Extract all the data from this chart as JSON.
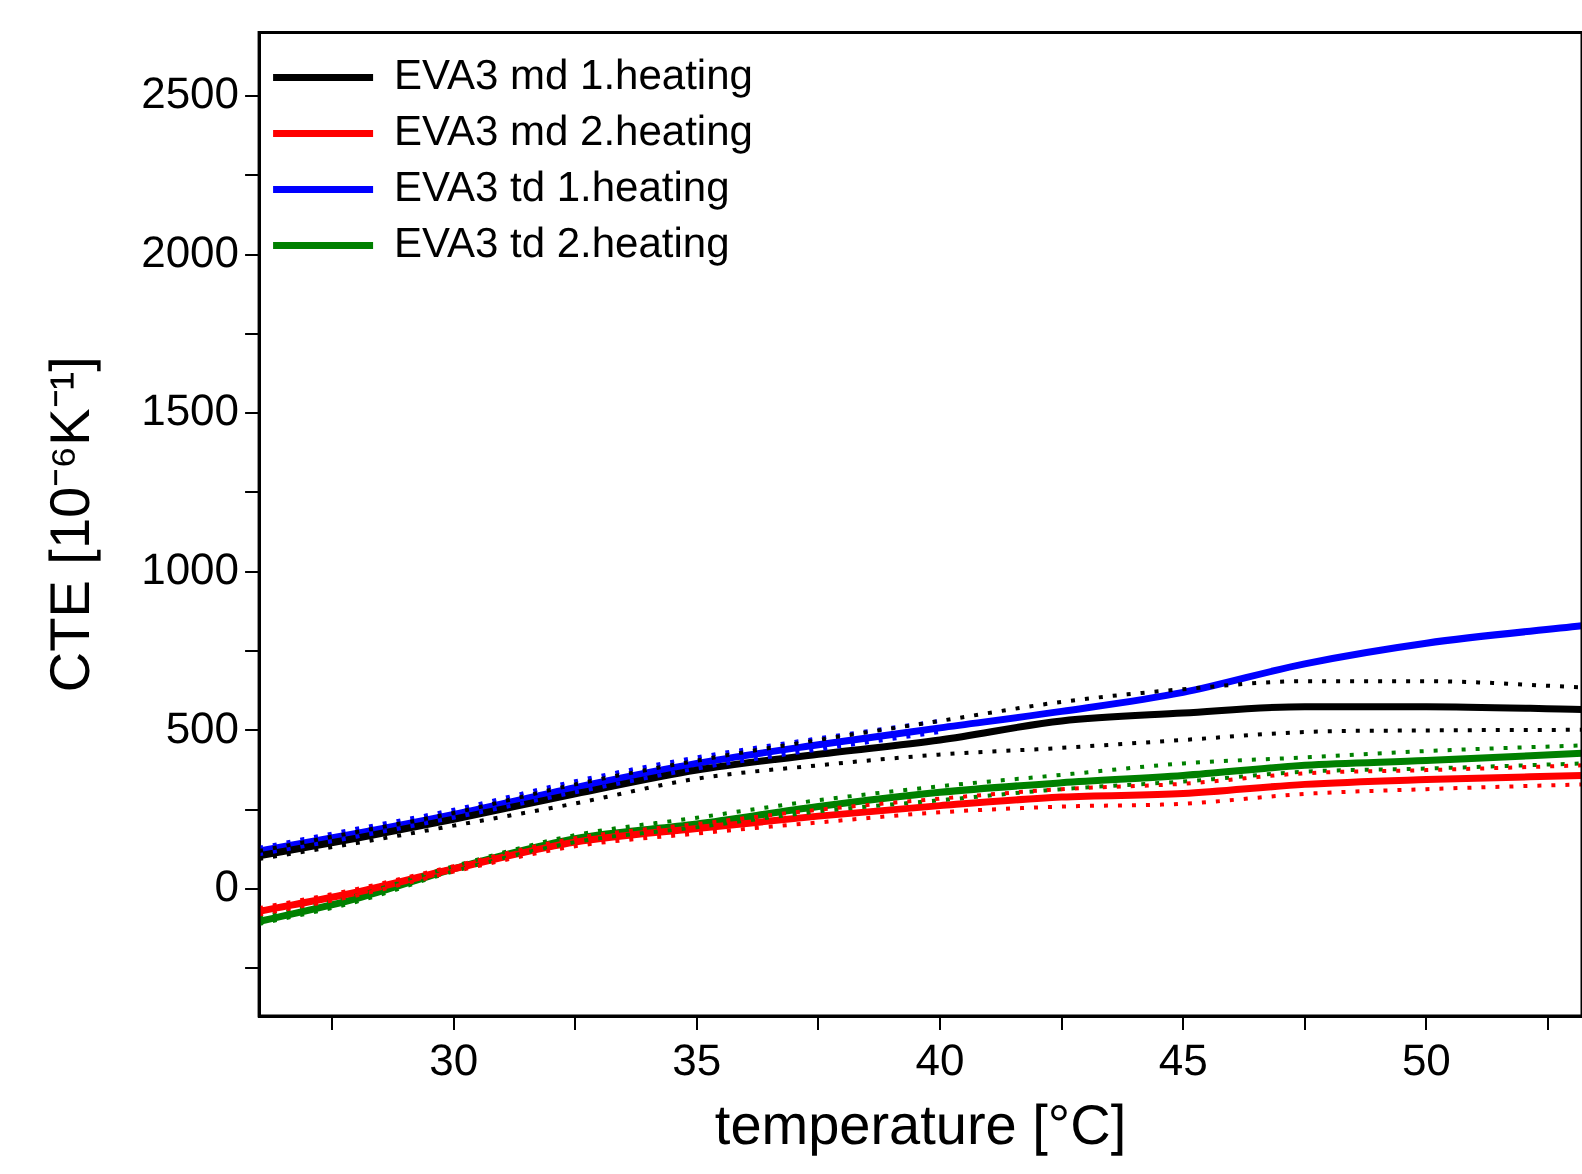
{
  "chart_data": {
    "type": "line",
    "xlabel": "temperature [°C]",
    "ylabel": "CTE [10⁻⁶K⁻¹]",
    "x": [
      26,
      28,
      30,
      32.5,
      35,
      37.5,
      40,
      42.5,
      45,
      47.5,
      50,
      53.2
    ],
    "xlim": [
      26,
      53.2
    ],
    "ylim": [
      -400,
      2700
    ],
    "xticks": [
      {
        "value": 27.5,
        "label": null
      },
      30,
      {
        "value": 32.5,
        "label": null
      },
      35,
      {
        "value": 37.5,
        "label": null
      },
      40,
      {
        "value": 42.5,
        "label": null
      },
      45,
      {
        "value": 47.5,
        "label": null
      },
      50,
      {
        "value": 52.5,
        "label": null
      }
    ],
    "yticks": [
      {
        "value": -250,
        "label": null
      },
      0,
      {
        "value": 250,
        "label": null
      },
      500,
      {
        "value": 750,
        "label": null
      },
      1000,
      {
        "value": 1250,
        "label": null
      },
      1500,
      {
        "value": 1750,
        "label": null
      },
      2000,
      {
        "value": 2250,
        "label": null
      },
      2500
    ],
    "grid": false,
    "legend": "top left",
    "marker": "none",
    "line_style": "solid",
    "series": [
      {
        "name": "EVA3 md 1.heating",
        "color": "#000000",
        "values": [
          105,
          160,
          220,
          300,
          375,
          425,
          470,
          530,
          555,
          575,
          575,
          566
        ]
      },
      {
        "name": "EVA3 md 2.heating",
        "color": "#ff0000",
        "values": [
          -70,
          -10,
          64,
          148,
          191,
          230,
          263,
          290,
          301,
          330,
          345,
          358
        ]
      },
      {
        "name": "EVA3 td 1.heating",
        "color": "#0000ff",
        "values": [
          120,
          175,
          235,
          320,
          396,
          455,
          508,
          560,
          620,
          710,
          775,
          830
        ]
      },
      {
        "name": "EVA3 td 2.heating",
        "color": "#008000",
        "values": [
          -102,
          -30,
          64,
          159,
          205,
          260,
          305,
          335,
          358,
          390,
          405,
          428
        ]
      },
      {
        "color": "#000000",
        "line_style": "dotted",
        "values": [
          95,
          145,
          200,
          270,
          348,
          390,
          424,
          445,
          470,
          495,
          500,
          502
        ]
      },
      {
        "color": "#000000",
        "line_style": "dotted",
        "values": [
          120,
          180,
          240,
          330,
          405,
          470,
          530,
          590,
          630,
          655,
          655,
          636
        ]
      },
      {
        "color": "#ff0000",
        "line_style": "dotted",
        "values": [
          -80,
          -20,
          55,
          135,
          175,
          210,
          242,
          260,
          269,
          300,
          315,
          330
        ]
      },
      {
        "color": "#ff0000",
        "line_style": "dotted",
        "values": [
          -60,
          0,
          72,
          160,
          205,
          250,
          285,
          315,
          332,
          365,
          375,
          390
        ]
      },
      {
        "color": "#0000ff",
        "line_style": "dotted",
        "values": [
          110,
          165,
          225,
          305,
          380,
          440,
          495,
          null,
          null,
          null,
          null,
          null
        ]
      },
      {
        "color": "#0000ff",
        "line_style": "dotted",
        "values": [
          130,
          190,
          250,
          340,
          415,
          475,
          530,
          null,
          null,
          null,
          null,
          null
        ]
      },
      {
        "color": "#008000",
        "line_style": "dotted",
        "values": [
          -110,
          -40,
          56,
          148,
          195,
          245,
          280,
          315,
          339,
          370,
          380,
          396
        ]
      },
      {
        "color": "#008000",
        "line_style": "dotted",
        "values": [
          -90,
          -20,
          72,
          170,
          225,
          280,
          324,
          360,
          396,
          415,
          435,
          453
        ]
      }
    ]
  }
}
